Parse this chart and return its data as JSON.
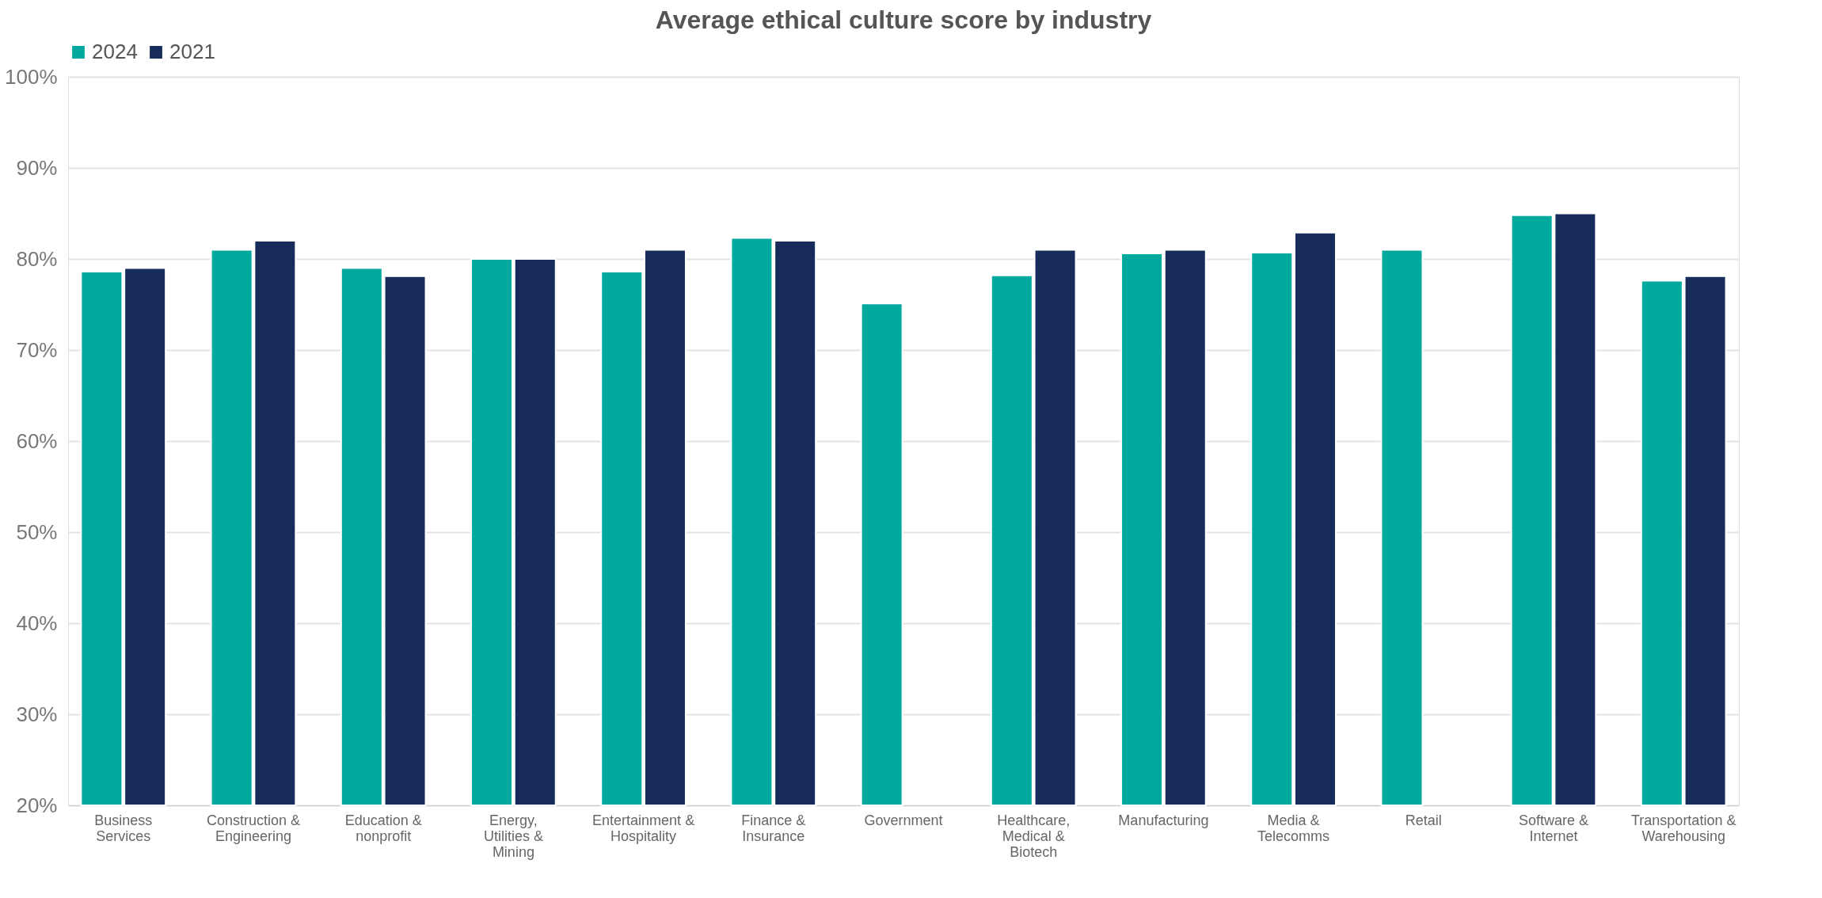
{
  "chart_data": {
    "type": "bar",
    "title": "Average ethical culture score by industry",
    "categories": [
      "Business Services",
      "Construction & Engineering",
      "Education & nonprofit",
      "Energy, Utilities & Mining",
      "Entertainment & Hospitality",
      "Finance & Insurance",
      "Government",
      "Healthcare, Medical & Biotech",
      "Manufacturing",
      "Media & Telecomms",
      "Retail",
      "Software & Internet",
      "Transportation & Warehousing"
    ],
    "series": [
      {
        "name": "2024",
        "color": "#00a99d",
        "values": [
          78.6,
          81.0,
          79.0,
          80.0,
          78.6,
          82.3,
          75.1,
          78.2,
          80.6,
          80.7,
          81.0,
          84.8,
          77.6
        ]
      },
      {
        "name": "2021",
        "color": "#172c5a",
        "values": [
          79.0,
          82.0,
          78.1,
          80.0,
          81.0,
          82.0,
          null,
          81.0,
          81.0,
          82.9,
          null,
          85.0,
          78.1
        ]
      }
    ],
    "ylim": [
      20,
      100
    ],
    "yticks": [
      {
        "value": 20,
        "label": "20%"
      },
      {
        "value": 30,
        "label": "30%"
      },
      {
        "value": 40,
        "label": "40%"
      },
      {
        "value": 50,
        "label": "50%"
      },
      {
        "value": 60,
        "label": "60%"
      },
      {
        "value": 70,
        "label": "70%"
      },
      {
        "value": 80,
        "label": "80%"
      },
      {
        "value": 90,
        "label": "90%"
      },
      {
        "value": 100,
        "label": "100%"
      }
    ],
    "grid": "y",
    "legend": "top"
  }
}
